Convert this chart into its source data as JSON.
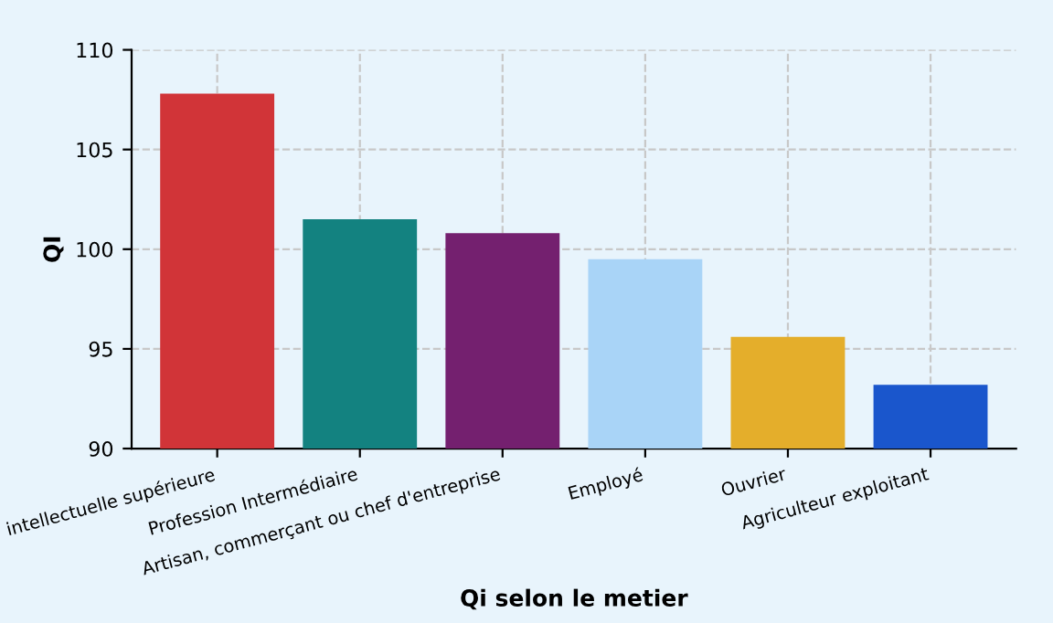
{
  "chart_data": {
    "type": "bar",
    "xlabel": "Qi selon le metier",
    "ylabel": "QI",
    "categories": [
      "intellectuelle supérieure",
      "Profession Intermédiaire",
      "Artisan, commerçant ou chef d'entreprise",
      "Employé",
      "Ouvrier",
      "Agriculteur exploitant"
    ],
    "values": [
      107.8,
      101.5,
      100.8,
      99.5,
      95.6,
      93.2
    ],
    "colors": [
      "#d13438",
      "#138280",
      "#74206f",
      "#a9d4f7",
      "#e4ae2b",
      "#1a56cc"
    ],
    "ylim": [
      90,
      110
    ],
    "yticks": [
      90,
      95,
      100,
      105,
      110
    ],
    "grid": true
  }
}
